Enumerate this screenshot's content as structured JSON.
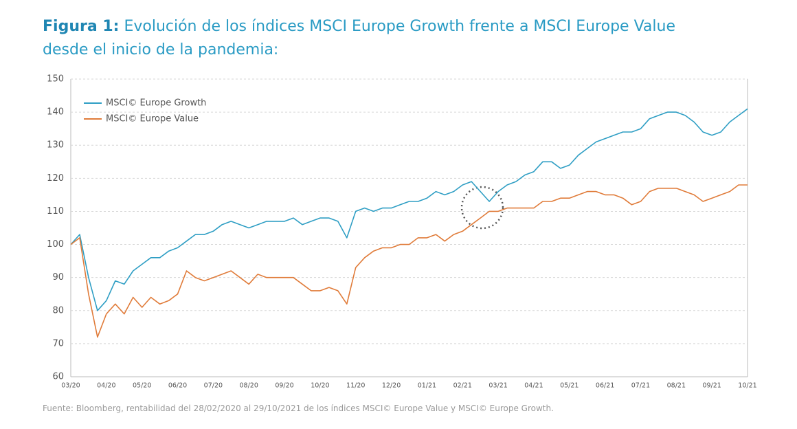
{
  "chart_data": {
    "type": "line",
    "title_label": "Figura 1:",
    "title": "Evolución de los índices MSCI Europe Growth frente a MSCI Europe Value desde el inicio de la pandemia:",
    "source": "Fuente: Bloomberg, rentabilidad del 28/02/2020 al 29/10/2021 de los índices MSCI© Europe Value y MSCI© Europe Growth.",
    "categories": [
      "03/20",
      null,
      null,
      null,
      "04/20",
      null,
      null,
      null,
      "05/20",
      null,
      null,
      null,
      "06/20",
      null,
      null,
      null,
      "07/20",
      null,
      null,
      null,
      "08/20",
      null,
      null,
      null,
      "09/20",
      null,
      null,
      null,
      "10/20",
      null,
      null,
      null,
      "11/20",
      null,
      null,
      null,
      "12/20",
      null,
      null,
      null,
      "01/21",
      null,
      null,
      null,
      "02/21",
      null,
      null,
      null,
      "03/21",
      null,
      null,
      null,
      "04/21",
      null,
      null,
      null,
      "05/21",
      null,
      null,
      null,
      "06/21",
      null,
      null,
      null,
      "07/21",
      null,
      null,
      null,
      "08/21",
      null,
      null,
      null,
      "09/21",
      null,
      null,
      null,
      "10/21"
    ],
    "series": [
      {
        "name": "MSCI© Europe Growth",
        "color": "#2e9ec4",
        "values": [
          100,
          103,
          90,
          80,
          83,
          89,
          88,
          92,
          94,
          96,
          96,
          98,
          99,
          101,
          103,
          103,
          104,
          106,
          107,
          106,
          105,
          106,
          107,
          107,
          107,
          108,
          106,
          107,
          108,
          108,
          107,
          102,
          110,
          111,
          110,
          111,
          111,
          112,
          113,
          113,
          114,
          116,
          115,
          116,
          118,
          119,
          116,
          113,
          116,
          118,
          119,
          121,
          122,
          125,
          125,
          123,
          124,
          127,
          129,
          131,
          132,
          133,
          134,
          134,
          135,
          138,
          139,
          140,
          140,
          139,
          137,
          134,
          133,
          134,
          137,
          139,
          141
        ]
      },
      {
        "name": "MSCI© Europe Value",
        "color": "#e07b39",
        "values": [
          100,
          102,
          85,
          72,
          79,
          82,
          79,
          84,
          81,
          84,
          82,
          83,
          85,
          92,
          90,
          89,
          90,
          91,
          92,
          90,
          88,
          91,
          90,
          90,
          90,
          90,
          88,
          86,
          86,
          87,
          86,
          82,
          93,
          96,
          98,
          99,
          99,
          100,
          100,
          102,
          102,
          103,
          101,
          103,
          104,
          106,
          108,
          110,
          110,
          111,
          111,
          111,
          111,
          113,
          113,
          114,
          114,
          115,
          116,
          116,
          115,
          115,
          114,
          112,
          113,
          116,
          117,
          117,
          117,
          116,
          115,
          113,
          114,
          115,
          116,
          118,
          118
        ]
      }
    ],
    "ylim": [
      60,
      150
    ],
    "yticks": [
      60,
      70,
      80,
      90,
      100,
      110,
      120,
      130,
      140,
      150
    ],
    "grid": true,
    "legend": "top-left"
  }
}
